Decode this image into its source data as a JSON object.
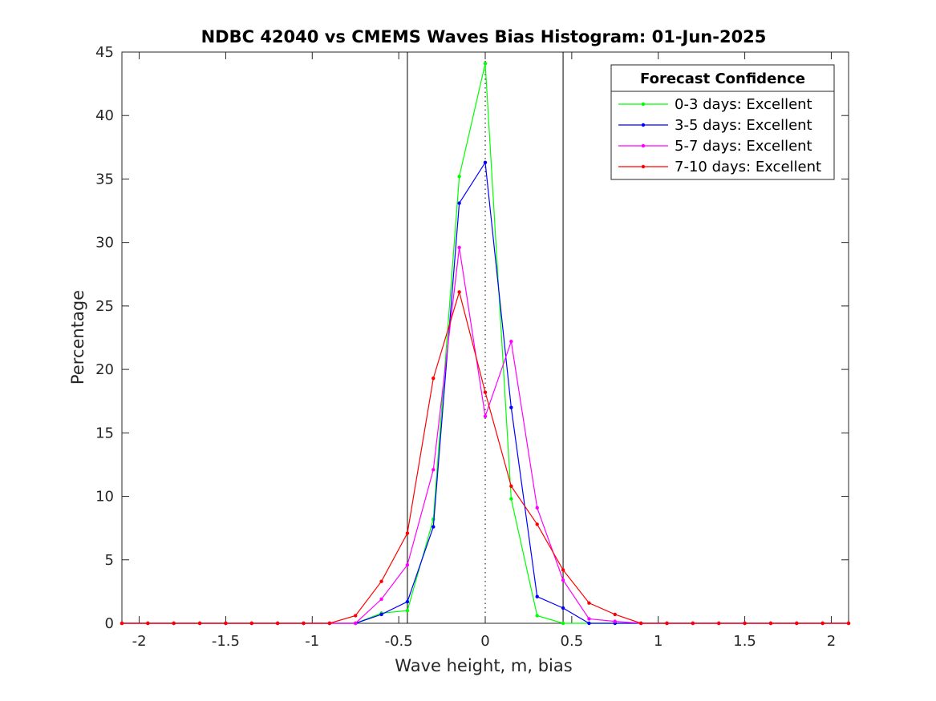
{
  "chart_data": {
    "type": "line",
    "title": "NDBC 42040 vs CMEMS Waves Bias Histogram: 01-Jun-2025",
    "xlabel": "Wave height, m, bias",
    "ylabel": "Percentage",
    "xlim": [
      -2.1,
      2.1
    ],
    "ylim": [
      0,
      45
    ],
    "xticks": [
      -2,
      -1.5,
      -1,
      -0.5,
      0,
      0.5,
      1,
      1.5,
      2
    ],
    "xtick_labels": [
      "-2",
      "-1.5",
      "-1",
      "-0.5",
      "0",
      "0.5",
      "1",
      "1.5",
      "2"
    ],
    "yticks": [
      0,
      5,
      10,
      15,
      20,
      25,
      30,
      35,
      40,
      45
    ],
    "ytick_labels": [
      "0",
      "5",
      "10",
      "15",
      "20",
      "25",
      "30",
      "35",
      "40",
      "45"
    ],
    "vertical_lines": [
      -0.45,
      0.45
    ],
    "zero_line": 0,
    "grid": false,
    "legend": {
      "title": "Forecast Confidence",
      "position": "top-right"
    },
    "x": [
      -2.1,
      -1.95,
      -1.8,
      -1.65,
      -1.5,
      -1.35,
      -1.2,
      -1.05,
      -0.9,
      -0.75,
      -0.6,
      -0.45,
      -0.3,
      -0.15,
      0,
      0.15,
      0.3,
      0.45,
      0.6,
      0.75,
      0.9,
      1.05,
      1.2,
      1.35,
      1.5,
      1.65,
      1.8,
      1.95,
      2.1
    ],
    "series": [
      {
        "name": "0-3 days: Excellent",
        "color": "#00ff00",
        "values": [
          0,
          0,
          0,
          0,
          0,
          0,
          0,
          0,
          0,
          0,
          0.8,
          1.0,
          8.2,
          35.2,
          44.1,
          9.8,
          0.6,
          0,
          0,
          0,
          0,
          0,
          0,
          0,
          0,
          0,
          0,
          0,
          0
        ]
      },
      {
        "name": "3-5 days: Excellent",
        "color": "#0000ff",
        "values": [
          0,
          0,
          0,
          0,
          0,
          0,
          0,
          0,
          0,
          0,
          0.7,
          1.7,
          7.6,
          33.1,
          36.3,
          17.0,
          2.1,
          1.2,
          0,
          0,
          0,
          0,
          0,
          0,
          0,
          0,
          0,
          0,
          0
        ]
      },
      {
        "name": "5-7 days: Excellent",
        "color": "#ff00ff",
        "values": [
          0,
          0,
          0,
          0,
          0,
          0,
          0,
          0,
          0,
          0,
          1.9,
          4.6,
          12.1,
          29.6,
          16.3,
          22.2,
          9.1,
          3.4,
          0.35,
          0.15,
          0,
          0,
          0,
          0,
          0,
          0,
          0,
          0,
          0
        ]
      },
      {
        "name": "7-10 days: Excellent",
        "color": "#ff0000",
        "values": [
          0,
          0,
          0,
          0,
          0,
          0,
          0,
          0,
          0,
          0.6,
          3.3,
          7.1,
          19.3,
          26.1,
          18.2,
          10.8,
          7.8,
          4.2,
          1.6,
          0.7,
          0,
          0,
          0,
          0,
          0,
          0,
          0,
          0,
          0
        ]
      }
    ]
  }
}
